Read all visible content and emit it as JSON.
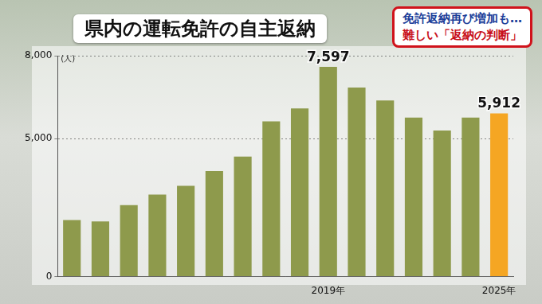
{
  "chart_data": {
    "type": "bar",
    "title": "県内の運転免許の自主返納",
    "subtitle": [
      "免許返納再び増加も…",
      "難しい「返納の判断」"
    ],
    "ylabel": "(人)",
    "categories": [
      null,
      null,
      null,
      null,
      null,
      null,
      null,
      null,
      null,
      "2019年",
      null,
      null,
      null,
      null,
      null,
      "2025年"
    ],
    "values": [
      2050,
      2000,
      2590,
      2970,
      3290,
      3820,
      4350,
      5620,
      6090,
      7597,
      6850,
      6380,
      5760,
      5290,
      5760,
      5912
    ],
    "value_labels": [
      null,
      null,
      null,
      null,
      null,
      null,
      null,
      null,
      null,
      "7,597",
      null,
      null,
      null,
      null,
      null,
      "5,912"
    ],
    "colors": [
      "#8e9a4c",
      "#8e9a4c",
      "#8e9a4c",
      "#8e9a4c",
      "#8e9a4c",
      "#8e9a4c",
      "#8e9a4c",
      "#8e9a4c",
      "#8e9a4c",
      "#8e9a4c",
      "#8e9a4c",
      "#8e9a4c",
      "#8e9a4c",
      "#8e9a4c",
      "#8e9a4c",
      "#f5a623"
    ],
    "ylim": [
      0,
      8000
    ],
    "yticks": [
      0,
      {
        "value": 5000,
        "label": "5,000"
      },
      {
        "value": 8000,
        "label": "8,000"
      }
    ],
    "grid": true
  }
}
